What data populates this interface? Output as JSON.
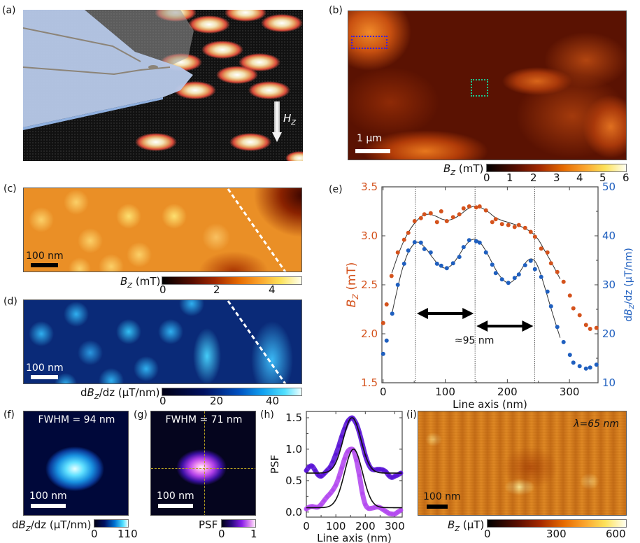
{
  "panels": {
    "a": {
      "label": "(a)",
      "field_label_main": "H",
      "field_label_sub": "Z",
      "description": "3D rendering of scanning tip over skyrmion lattice"
    },
    "b": {
      "label": "(b)",
      "scalebar": "1 µm",
      "colorbar": {
        "label_main": "B",
        "label_sub": "Z",
        "label_unit": " (mT)",
        "ticks": [
          "0",
          "1",
          "2",
          "3",
          "4",
          "5",
          "6"
        ],
        "colormap": "afmhot"
      },
      "roi_colors": {
        "blue": "#3b1fe0",
        "green": "#19c98a"
      }
    },
    "c": {
      "label": "(c)",
      "scalebar": "100 nm",
      "colorbar": {
        "label_main": "B",
        "label_sub": "Z",
        "label_unit": " (mT)",
        "ticks": [
          "0",
          "2",
          "4"
        ],
        "colormap": "afmhot"
      }
    },
    "d": {
      "label": "(d)",
      "scalebar": "100 nm",
      "colorbar": {
        "label_prefix": "d",
        "label_main": "B",
        "label_sub": "Z",
        "label_unit": "/dz (µT/nm)",
        "ticks": [
          "0",
          "20",
          "40"
        ],
        "colormap": "blue"
      }
    },
    "f": {
      "label": "(f)",
      "annotation": "FWHM = 94 nm",
      "scalebar": "100 nm",
      "colorbar": {
        "label_prefix": "d",
        "label_main": "B",
        "label_sub": "Z",
        "label_unit": "/dz (µT/nm)",
        "ticks": [
          "0",
          "110"
        ]
      }
    },
    "g": {
      "label": "(g)",
      "annotation": "FWHM = 71 nm",
      "scalebar": "100 nm",
      "colorbar": {
        "label_main": "PSF",
        "ticks": [
          "0",
          "1"
        ]
      }
    },
    "i": {
      "label": "(i)",
      "annotation": "λ=65 nm",
      "scalebar": "100 nm",
      "colorbar": {
        "label_main": "B",
        "label_sub": "Z",
        "label_unit": " (µT)",
        "ticks": [
          "0",
          "300",
          "600"
        ]
      }
    }
  },
  "chart_data": [
    {
      "id": "e",
      "panel_label": "(e)",
      "type": "scatter",
      "xlabel": "Line axis (nm)",
      "ylabel_left": {
        "main": "B",
        "sub": "Z",
        "unit": " (mT)"
      },
      "ylabel_right": {
        "prefix": "d",
        "main": "B",
        "sub": "Z",
        "unit": "/dz (µT/nm)"
      },
      "xlim": [
        -2,
        346
      ],
      "ylim_left": [
        1.5,
        3.5
      ],
      "ylim_right": [
        10,
        50
      ],
      "xticks": [
        0,
        100,
        200,
        300
      ],
      "yticks_left": [
        1.5,
        2.0,
        2.5,
        3.0,
        3.5
      ],
      "yticks_right": [
        10,
        20,
        30,
        40,
        50
      ],
      "vlines": [
        52,
        148,
        244
      ],
      "annotation": "≈95 nm",
      "colors": {
        "bz": "#d4521c",
        "dbz": "#1f5fbf",
        "fit": "#333333"
      },
      "series": [
        {
          "name": "Bz",
          "axis": "left",
          "x": [
            0,
            5.6,
            13.5,
            23.6,
            33.8,
            40.5,
            50.7,
            60.8,
            66.4,
            76.6,
            86.7,
            93.5,
            102.5,
            112.6,
            122.7,
            129.5,
            138.5,
            149.8,
            155.4,
            165.5,
            175.7,
            181.3,
            191.4,
            201.6,
            211.7,
            218.5,
            228.6,
            237.6,
            244.4,
            254.5,
            264.6,
            270.3,
            280.4,
            290.5,
            300.7,
            306.3,
            316.4,
            326.6,
            333.3,
            343.5
          ],
          "y": [
            2.11,
            2.3,
            2.59,
            2.83,
            2.96,
            3.03,
            3.15,
            3.18,
            3.22,
            3.23,
            3.14,
            3.25,
            3.15,
            3.19,
            3.22,
            3.28,
            3.3,
            3.29,
            3.3,
            3.26,
            3.14,
            3.17,
            3.12,
            3.11,
            3.09,
            3.11,
            3.08,
            3.04,
            2.99,
            2.87,
            2.83,
            2.72,
            2.63,
            2.53,
            2.39,
            2.26,
            2.19,
            2.09,
            2.05,
            2.06
          ]
        },
        {
          "name": "dBz/dz",
          "axis": "right",
          "x": [
            0,
            5.6,
            14.6,
            23.6,
            33.8,
            40.5,
            50.7,
            60.8,
            66.4,
            76.6,
            86.7,
            93.5,
            102.5,
            112.6,
            122.7,
            129.5,
            138.5,
            149.8,
            155.4,
            165.5,
            175.7,
            181.3,
            191.4,
            201.6,
            211.7,
            218.5,
            228.6,
            237.6,
            244.4,
            254.5,
            264.6,
            270.3,
            280.4,
            290.5,
            300.7,
            306.3,
            316.4,
            326.6,
            333.3,
            343.5
          ],
          "y": [
            15.9,
            18.6,
            24.1,
            30.0,
            34.3,
            37.0,
            38.7,
            38.6,
            37.3,
            36.6,
            34.3,
            33.9,
            33.4,
            34.4,
            35.7,
            37.7,
            39.1,
            38.9,
            38.6,
            36.6,
            34.1,
            32.4,
            31.1,
            30.4,
            31.4,
            32.1,
            34.0,
            34.9,
            33.2,
            31.6,
            28.6,
            25.6,
            21.4,
            18.3,
            15.7,
            14.1,
            13.4,
            12.9,
            13.1,
            13.7
          ]
        }
      ],
      "fits": [
        {
          "name": "Bz fit",
          "axis": "left",
          "x": [
            14,
            25,
            35,
            45,
            55,
            65,
            75,
            85,
            95,
            105,
            115,
            125,
            135,
            145,
            152,
            160,
            170,
            180,
            190,
            200,
            210,
            220,
            230,
            240,
            250,
            260,
            270,
            280,
            285
          ],
          "y": [
            2.62,
            2.82,
            2.97,
            3.08,
            3.16,
            3.21,
            3.22,
            3.2,
            3.17,
            3.16,
            3.18,
            3.22,
            3.27,
            3.3,
            3.3,
            3.28,
            3.24,
            3.19,
            3.16,
            3.14,
            3.12,
            3.1,
            3.07,
            3.03,
            2.96,
            2.85,
            2.74,
            2.62,
            2.56
          ]
        },
        {
          "name": "dBz/dz fit",
          "axis": "right",
          "x": [
            14,
            20,
            30,
            40,
            50,
            55,
            60,
            70,
            80,
            90,
            100,
            110,
            120,
            130,
            140,
            148,
            155,
            165,
            175,
            185,
            195,
            202,
            210,
            220,
            230,
            238,
            245,
            252,
            260,
            270,
            280,
            285
          ],
          "y": [
            24,
            27.5,
            32.8,
            36.5,
            38.4,
            38.7,
            38.5,
            37.2,
            35.5,
            34.0,
            33.4,
            34.0,
            35.6,
            37.6,
            39.0,
            39.3,
            38.8,
            37.0,
            34.6,
            32.3,
            30.8,
            30.4,
            30.9,
            32.6,
            34.6,
            35.3,
            34.7,
            32.8,
            29.6,
            25.3,
            21.2,
            19.2
          ]
        }
      ]
    },
    {
      "id": "h",
      "panel_label": "(h)",
      "type": "line",
      "xlabel": "Line axis (nm)",
      "ylabel": "PSF",
      "xlim": [
        0,
        325
      ],
      "ylim": [
        -0.08,
        1.6
      ],
      "xticks": [
        0,
        100,
        200,
        300
      ],
      "yticks": [
        0.0,
        0.5,
        1.0,
        1.5
      ],
      "colors": {
        "upper": "#5a14d6",
        "lower": "#b44af0",
        "fit": "#111111"
      },
      "series": [
        {
          "name": "PSF profile (offset)",
          "x": [
            0,
            10,
            20,
            30,
            40,
            50,
            60,
            70,
            80,
            90,
            100,
            110,
            120,
            130,
            140,
            150,
            155,
            160,
            170,
            180,
            190,
            200,
            210,
            220,
            230,
            240,
            250,
            260,
            270,
            280,
            290,
            300,
            310,
            320
          ],
          "y": [
            0.66,
            0.72,
            0.73,
            0.66,
            0.59,
            0.57,
            0.61,
            0.66,
            0.71,
            0.8,
            0.92,
            1.05,
            1.2,
            1.33,
            1.44,
            1.49,
            1.5,
            1.48,
            1.4,
            1.26,
            1.08,
            0.9,
            0.77,
            0.69,
            0.67,
            0.68,
            0.68,
            0.67,
            0.64,
            0.58,
            0.55,
            0.57,
            0.59,
            0.62
          ]
        },
        {
          "name": "PSF profile",
          "x": [
            0,
            10,
            20,
            30,
            40,
            50,
            60,
            70,
            80,
            90,
            100,
            110,
            120,
            130,
            140,
            150,
            160,
            170,
            180,
            190,
            200,
            210,
            220,
            230,
            240,
            250,
            260,
            270,
            280,
            290,
            300,
            310,
            320
          ],
          "y": [
            0.05,
            0.08,
            0.09,
            0.08,
            0.08,
            0.12,
            0.18,
            0.24,
            0.29,
            0.35,
            0.43,
            0.55,
            0.7,
            0.85,
            0.96,
            1.0,
            0.98,
            0.82,
            0.58,
            0.3,
            0.12,
            0.06,
            0.06,
            0.07,
            0.08,
            0.07,
            0.04,
            0.01,
            -0.02,
            -0.03,
            -0.03,
            0.0,
            0.03
          ]
        }
      ],
      "fits": [
        {
          "name": "Gaussian fit (offset)",
          "center": 155,
          "fwhm": 71,
          "amplitude": 0.88,
          "offset": 0.62
        },
        {
          "name": "Gaussian fit",
          "center": 160,
          "fwhm": 71,
          "amplitude": 0.93,
          "offset": 0.07
        }
      ]
    }
  ]
}
